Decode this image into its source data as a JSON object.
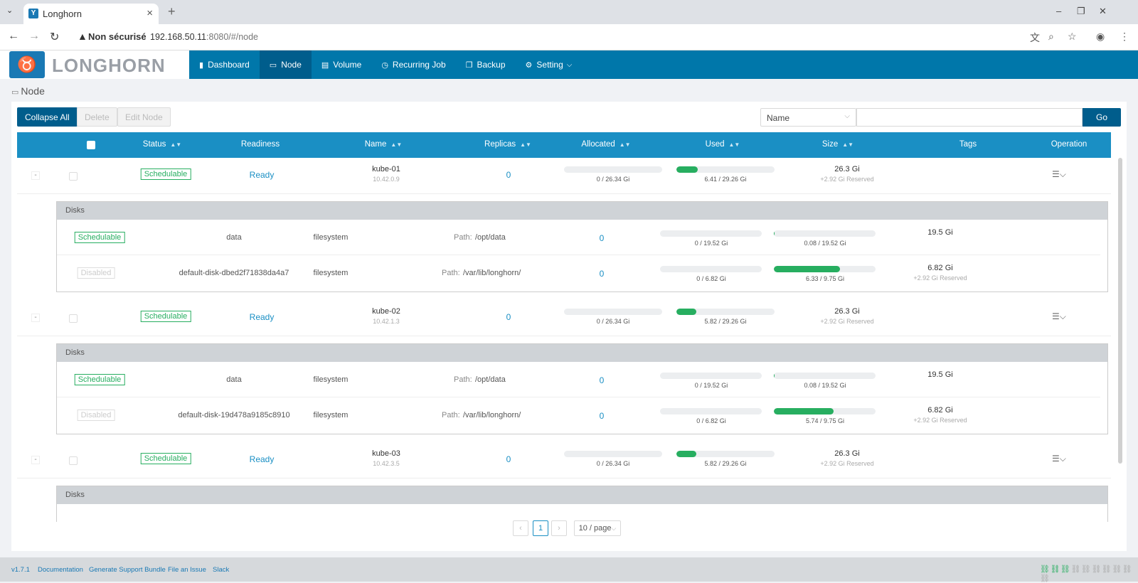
{
  "browser": {
    "tab_title": "Longhorn",
    "security_label": "Non sécurisé",
    "url_host": "192.168.50.11",
    "url_rest": ":8080/#/node"
  },
  "app": {
    "logo_text": "LONGHORN",
    "menu": [
      {
        "label": "Dashboard",
        "icon": "chart-icon"
      },
      {
        "label": "Node",
        "icon": "laptop-icon"
      },
      {
        "label": "Volume",
        "icon": "file-icon"
      },
      {
        "label": "Recurring Job",
        "icon": "clock-icon"
      },
      {
        "label": "Backup",
        "icon": "copy-icon"
      },
      {
        "label": "Setting",
        "icon": "gear-icon"
      }
    ],
    "active_menu": "Node"
  },
  "page": {
    "title": "Node",
    "buttons": {
      "collapse_all": "Collapse All",
      "delete": "Delete",
      "edit_node": "Edit Node"
    },
    "search": {
      "field": "Name",
      "go": "Go"
    }
  },
  "table": {
    "headers": {
      "status": "Status",
      "readiness": "Readiness",
      "name": "Name",
      "replicas": "Replicas",
      "allocated": "Allocated",
      "used": "Used",
      "size": "Size",
      "tags": "Tags",
      "operation": "Operation"
    },
    "disks_label": "Disks",
    "path_label": "Path:",
    "nodes": [
      {
        "status": "Schedulable",
        "readiness": "Ready",
        "name": "kube-01",
        "ip": "10.42.0.9",
        "replicas": "0",
        "allocated_label": "0 / 26.34 Gi",
        "allocated_fraction": 0,
        "used_label": "6.41 / 29.26 Gi",
        "used_fraction": 0.22,
        "size": "26.3 Gi",
        "reserved": "+2.92 Gi Reserved",
        "disks": [
          {
            "status": "Schedulable",
            "name": "data",
            "type": "filesystem",
            "path": "/opt/data",
            "replicas": "0",
            "allocated_label": "0 / 19.52 Gi",
            "allocated_fraction": 0,
            "used_label": "0.08 / 19.52 Gi",
            "used_fraction": 0.004,
            "size": "19.5 Gi",
            "reserved": ""
          },
          {
            "status": "Disabled",
            "name": "default-disk-dbed2f71838da4a7",
            "type": "filesystem",
            "path": "/var/lib/longhorn/",
            "replicas": "0",
            "allocated_label": "0 / 6.82 Gi",
            "allocated_fraction": 0,
            "used_label": "6.33 / 9.75 Gi",
            "used_fraction": 0.65,
            "size": "6.82 Gi",
            "reserved": "+2.92 Gi Reserved"
          }
        ]
      },
      {
        "status": "Schedulable",
        "readiness": "Ready",
        "name": "kube-02",
        "ip": "10.42.1.3",
        "replicas": "0",
        "allocated_label": "0 / 26.34 Gi",
        "allocated_fraction": 0,
        "used_label": "5.82 / 29.26 Gi",
        "used_fraction": 0.2,
        "size": "26.3 Gi",
        "reserved": "+2.92 Gi Reserved",
        "disks": [
          {
            "status": "Schedulable",
            "name": "data",
            "type": "filesystem",
            "path": "/opt/data",
            "replicas": "0",
            "allocated_label": "0 / 19.52 Gi",
            "allocated_fraction": 0,
            "used_label": "0.08 / 19.52 Gi",
            "used_fraction": 0.004,
            "size": "19.5 Gi",
            "reserved": ""
          },
          {
            "status": "Disabled",
            "name": "default-disk-19d478a9185c8910",
            "type": "filesystem",
            "path": "/var/lib/longhorn/",
            "replicas": "0",
            "allocated_label": "0 / 6.82 Gi",
            "allocated_fraction": 0,
            "used_label": "5.74 / 9.75 Gi",
            "used_fraction": 0.59,
            "size": "6.82 Gi",
            "reserved": "+2.92 Gi Reserved"
          }
        ]
      },
      {
        "status": "Schedulable",
        "readiness": "Ready",
        "name": "kube-03",
        "ip": "10.42.3.5",
        "replicas": "0",
        "allocated_label": "0 / 26.34 Gi",
        "allocated_fraction": 0,
        "used_label": "5.82 / 29.26 Gi",
        "used_fraction": 0.2,
        "size": "26.3 Gi",
        "reserved": "+2.92 Gi Reserved",
        "disks": []
      }
    ]
  },
  "pagination": {
    "current": "1",
    "page_size": "10 / page"
  },
  "footer": {
    "version": "v1.7.1",
    "documentation": "Documentation",
    "support_bundle": "Generate Support Bundle",
    "issue": "File an Issue",
    "slack": "Slack"
  },
  "colors": {
    "header": "#0077aa",
    "table_header": "#1a8fc4",
    "ok": "#27ae60"
  }
}
